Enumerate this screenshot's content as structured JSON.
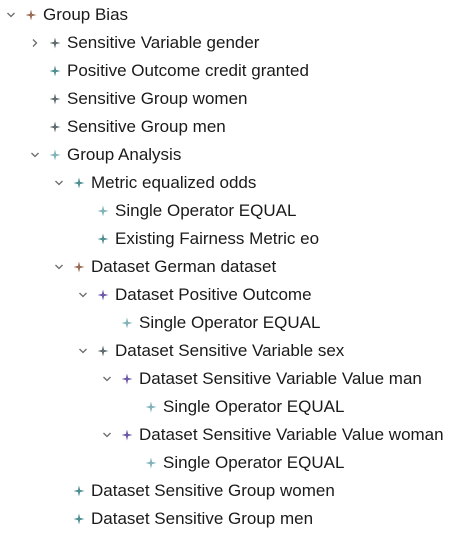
{
  "colors": {
    "brown": "#9a6a52",
    "gray": "#5f6b6f",
    "teal": "#4f8d92",
    "purple": "#6e58a8",
    "lightTeal": "#7fb3b7"
  },
  "nodes": [
    {
      "label": "Group Bias",
      "depth": 0,
      "toggle": "expanded",
      "icon": "brown"
    },
    {
      "label": "Sensitive Variable gender",
      "depth": 1,
      "toggle": "collapsed",
      "icon": "gray"
    },
    {
      "label": "Positive Outcome credit granted",
      "depth": 1,
      "toggle": "none",
      "icon": "teal"
    },
    {
      "label": "Sensitive Group women",
      "depth": 1,
      "toggle": "none",
      "icon": "gray"
    },
    {
      "label": "Sensitive Group men",
      "depth": 1,
      "toggle": "none",
      "icon": "gray"
    },
    {
      "label": "Group Analysis",
      "depth": 1,
      "toggle": "expanded",
      "icon": "lightTeal"
    },
    {
      "label": "Metric equalized odds",
      "depth": 2,
      "toggle": "expanded",
      "icon": "teal"
    },
    {
      "label": "Single Operator EQUAL",
      "depth": 3,
      "toggle": "none",
      "icon": "lightTeal"
    },
    {
      "label": "Existing Fairness Metric eo",
      "depth": 3,
      "toggle": "none",
      "icon": "teal"
    },
    {
      "label": "Dataset German dataset",
      "depth": 2,
      "toggle": "expanded",
      "icon": "brown"
    },
    {
      "label": "Dataset Positive Outcome",
      "depth": 3,
      "toggle": "expanded",
      "icon": "purple"
    },
    {
      "label": "Single Operator EQUAL",
      "depth": 4,
      "toggle": "none",
      "icon": "lightTeal"
    },
    {
      "label": "Dataset Sensitive Variable sex",
      "depth": 3,
      "toggle": "expanded",
      "icon": "gray"
    },
    {
      "label": "Dataset Sensitive Variable Value man",
      "depth": 4,
      "toggle": "expanded",
      "icon": "purple"
    },
    {
      "label": "Single Operator EQUAL",
      "depth": 5,
      "toggle": "none",
      "icon": "lightTeal"
    },
    {
      "label": "Dataset Sensitive Variable Value woman",
      "depth": 4,
      "toggle": "expanded",
      "icon": "purple"
    },
    {
      "label": "Single Operator EQUAL",
      "depth": 5,
      "toggle": "none",
      "icon": "lightTeal"
    },
    {
      "label": "Dataset Sensitive Group women",
      "depth": 2,
      "toggle": "none",
      "icon": "teal"
    },
    {
      "label": "Dataset Sensitive Group men",
      "depth": 2,
      "toggle": "none",
      "icon": "teal"
    }
  ]
}
